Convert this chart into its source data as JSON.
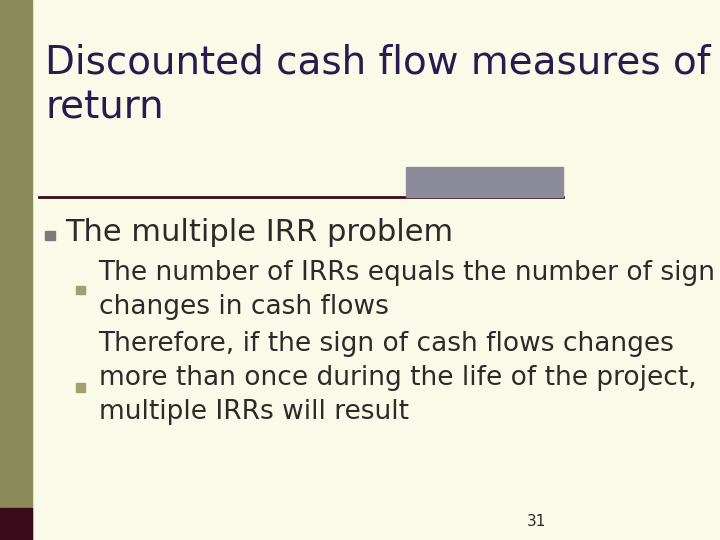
{
  "title": "Discounted cash flow measures of\nreturn",
  "title_color": "#2B1A4F",
  "background_color": "#FAFAE8",
  "left_bar_color": "#8B8B5A",
  "left_bar_dark": "#3B0A1A",
  "header_line_color": "#3B0A1A",
  "header_accent_color": "#8B8B9A",
  "bullet1_text": "The multiple IRR problem",
  "bullet1_color": "#2B2B2B",
  "bullet1_marker_color": "#7A7A7A",
  "sub_bullet1_text": "The number of IRRs equals the number of sign\nchanges in cash flows",
  "sub_bullet2_text": "Therefore, if the sign of cash flows changes\nmore than once during the life of the project,\nmultiple IRRs will result",
  "sub_bullet_color": "#2B2B2B",
  "sub_bullet_marker_color": "#A0A070",
  "page_number": "31",
  "title_fontsize": 28,
  "bullet1_fontsize": 22,
  "sub_bullet_fontsize": 19,
  "page_num_fontsize": 11
}
